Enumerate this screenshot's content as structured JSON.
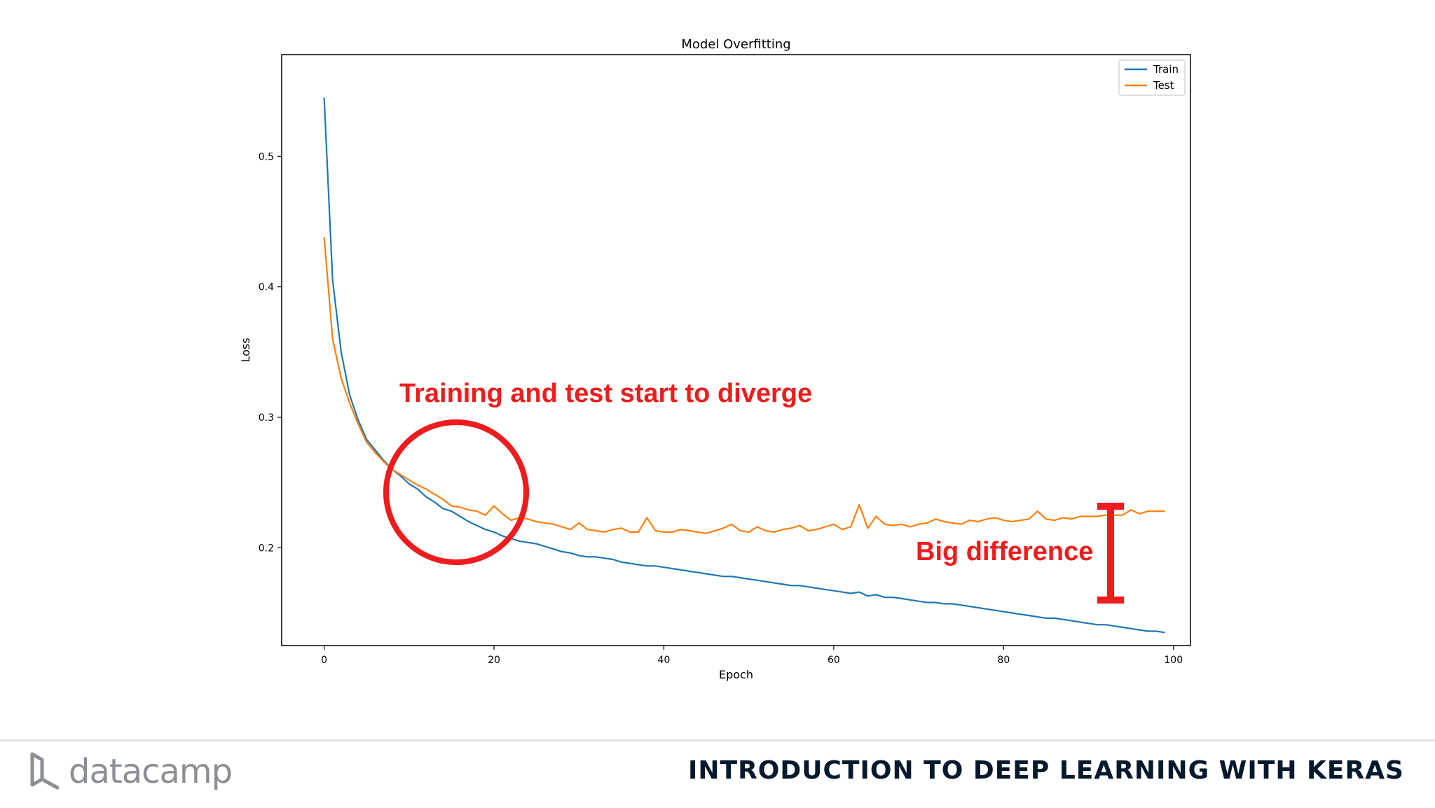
{
  "chart_data": {
    "type": "line",
    "title": "Model Overfitting",
    "xlabel": "Epoch",
    "ylabel": "Loss",
    "xlim": [
      -5,
      102
    ],
    "ylim": [
      0.125,
      0.578
    ],
    "xticks": [
      0,
      20,
      40,
      60,
      80,
      100
    ],
    "yticks": [
      0.2,
      0.3,
      0.4,
      0.5
    ],
    "grid": false,
    "legend": "top-right",
    "series": [
      {
        "name": "Train",
        "color": "#1f77b4",
        "x": [
          0,
          1,
          2,
          3,
          4,
          5,
          6,
          7,
          8,
          9,
          10,
          11,
          12,
          13,
          14,
          15,
          16,
          17,
          18,
          19,
          20,
          21,
          22,
          23,
          24,
          25,
          26,
          27,
          28,
          29,
          30,
          31,
          32,
          33,
          34,
          35,
          36,
          37,
          38,
          39,
          40,
          41,
          42,
          43,
          44,
          45,
          46,
          47,
          48,
          49,
          50,
          51,
          52,
          53,
          54,
          55,
          56,
          57,
          58,
          59,
          60,
          61,
          62,
          63,
          64,
          65,
          66,
          67,
          68,
          69,
          70,
          71,
          72,
          73,
          74,
          75,
          76,
          77,
          78,
          79,
          80,
          81,
          82,
          83,
          84,
          85,
          86,
          87,
          88,
          89,
          90,
          91,
          92,
          93,
          94,
          95,
          96,
          97,
          98,
          99
        ],
        "values": [
          0.545,
          0.405,
          0.35,
          0.317,
          0.298,
          0.283,
          0.275,
          0.267,
          0.26,
          0.255,
          0.249,
          0.245,
          0.239,
          0.235,
          0.23,
          0.228,
          0.224,
          0.22,
          0.217,
          0.214,
          0.212,
          0.209,
          0.207,
          0.205,
          0.204,
          0.203,
          0.201,
          0.199,
          0.197,
          0.196,
          0.194,
          0.193,
          0.193,
          0.192,
          0.191,
          0.189,
          0.188,
          0.187,
          0.186,
          0.186,
          0.185,
          0.184,
          0.183,
          0.182,
          0.181,
          0.18,
          0.179,
          0.178,
          0.178,
          0.177,
          0.176,
          0.175,
          0.174,
          0.173,
          0.172,
          0.171,
          0.171,
          0.17,
          0.169,
          0.168,
          0.167,
          0.166,
          0.165,
          0.166,
          0.163,
          0.164,
          0.162,
          0.162,
          0.161,
          0.16,
          0.159,
          0.158,
          0.158,
          0.157,
          0.157,
          0.156,
          0.155,
          0.154,
          0.153,
          0.152,
          0.151,
          0.15,
          0.149,
          0.148,
          0.147,
          0.146,
          0.146,
          0.145,
          0.144,
          0.143,
          0.142,
          0.141,
          0.141,
          0.14,
          0.139,
          0.138,
          0.137,
          0.136,
          0.136,
          0.135
        ]
      },
      {
        "name": "Test",
        "color": "#ff7f0e",
        "x": [
          0,
          1,
          2,
          3,
          4,
          5,
          6,
          7,
          8,
          9,
          10,
          11,
          12,
          13,
          14,
          15,
          16,
          17,
          18,
          19,
          20,
          21,
          22,
          23,
          24,
          25,
          26,
          27,
          28,
          29,
          30,
          31,
          32,
          33,
          34,
          35,
          36,
          37,
          38,
          39,
          40,
          41,
          42,
          43,
          44,
          45,
          46,
          47,
          48,
          49,
          50,
          51,
          52,
          53,
          54,
          55,
          56,
          57,
          58,
          59,
          60,
          61,
          62,
          63,
          64,
          65,
          66,
          67,
          68,
          69,
          70,
          71,
          72,
          73,
          74,
          75,
          76,
          77,
          78,
          79,
          80,
          81,
          82,
          83,
          84,
          85,
          86,
          87,
          88,
          89,
          90,
          91,
          92,
          93,
          94,
          95,
          96,
          97,
          98,
          99
        ],
        "values": [
          0.438,
          0.36,
          0.33,
          0.311,
          0.295,
          0.281,
          0.273,
          0.266,
          0.26,
          0.256,
          0.252,
          0.248,
          0.245,
          0.241,
          0.237,
          0.232,
          0.231,
          0.229,
          0.228,
          0.225,
          0.232,
          0.226,
          0.221,
          0.223,
          0.222,
          0.22,
          0.219,
          0.218,
          0.216,
          0.214,
          0.219,
          0.214,
          0.213,
          0.212,
          0.214,
          0.215,
          0.212,
          0.212,
          0.223,
          0.213,
          0.212,
          0.212,
          0.214,
          0.213,
          0.212,
          0.211,
          0.213,
          0.215,
          0.218,
          0.213,
          0.212,
          0.216,
          0.213,
          0.212,
          0.214,
          0.215,
          0.217,
          0.213,
          0.214,
          0.216,
          0.218,
          0.214,
          0.216,
          0.233,
          0.215,
          0.224,
          0.218,
          0.217,
          0.218,
          0.216,
          0.218,
          0.219,
          0.222,
          0.22,
          0.219,
          0.218,
          0.221,
          0.22,
          0.222,
          0.223,
          0.221,
          0.22,
          0.221,
          0.222,
          0.228,
          0.222,
          0.221,
          0.223,
          0.222,
          0.224,
          0.224,
          0.224,
          0.225,
          0.225,
          0.225,
          0.229,
          0.226,
          0.228,
          0.228,
          0.228
        ]
      }
    ],
    "annotations": [
      {
        "text": "Training and test start to diverge",
        "color": "#ee1c1c"
      },
      {
        "text": "Big difference",
        "color": "#ee1c1c"
      }
    ]
  },
  "footer": {
    "brand": "datacamp",
    "course_title": "INTRODUCTION TO DEEP LEARNING WITH KERAS"
  }
}
